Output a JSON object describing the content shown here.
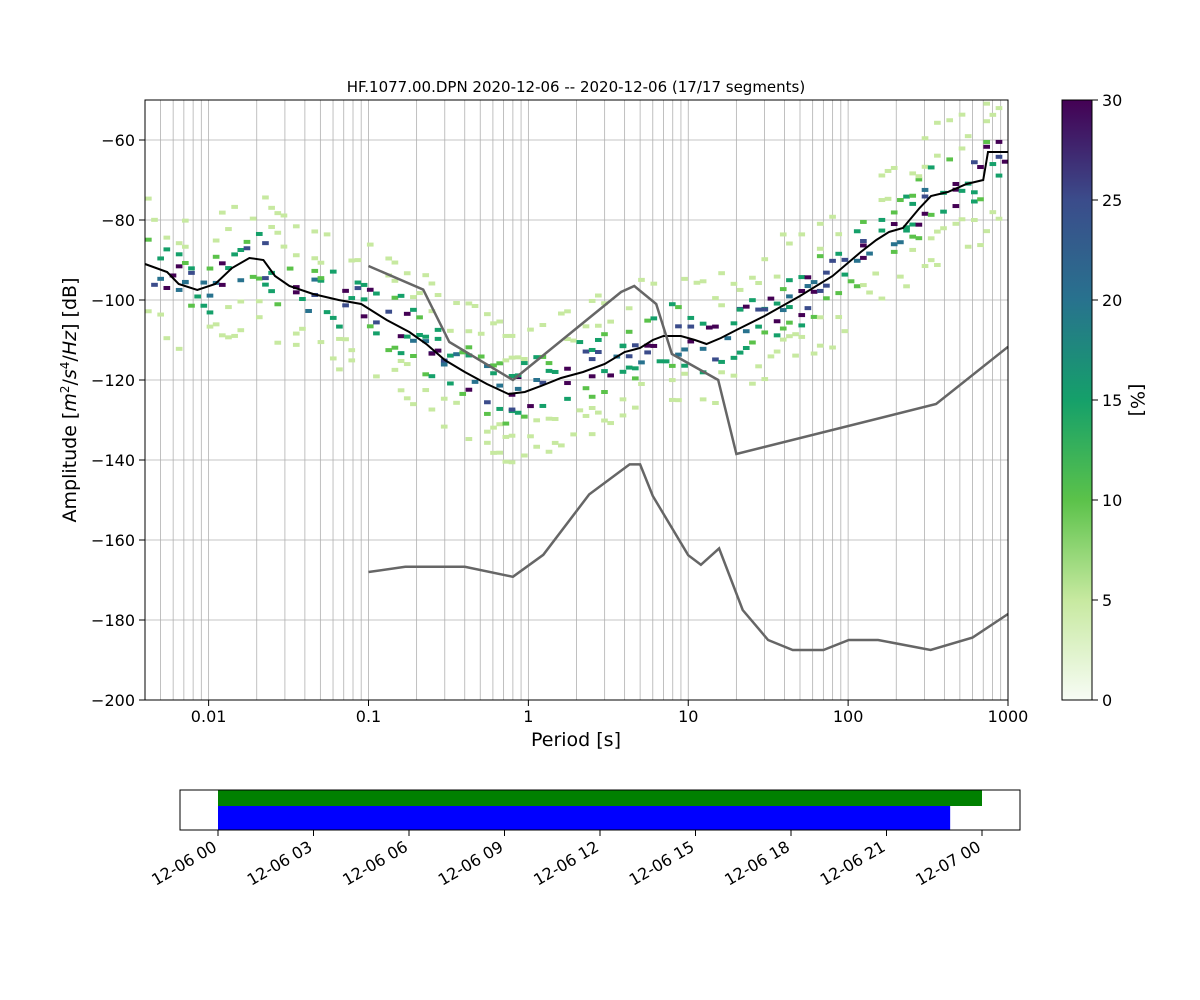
{
  "chart_data": [
    {
      "type": "heatmap",
      "title": "HF.1077.00.DPN   2020-12-06 -- 2020-12-06  (17/17 segments)",
      "xlabel": "Period [s]",
      "ylabel": "Amplitude [m²/s⁴/Hz] [dB]",
      "xscale": "log",
      "xlim": [
        0.004,
        1000
      ],
      "ylim": [
        -200,
        -50
      ],
      "grid": true,
      "x_ticks": [
        0.01,
        0.1,
        1,
        10,
        100,
        1000
      ],
      "x_tick_labels": [
        "0.01",
        "0.1",
        "1",
        "10",
        "100",
        "1000"
      ],
      "y_ticks": [
        -200,
        -180,
        -160,
        -140,
        -120,
        -100,
        -80,
        -60
      ],
      "y_tick_labels": [
        "−200",
        "−180",
        "−160",
        "−140",
        "−120",
        "−100",
        "−80",
        "−60"
      ],
      "colorbar": {
        "label": "[%]",
        "range": [
          0,
          30
        ],
        "ticks": [
          0,
          5,
          10,
          15,
          20,
          25,
          30
        ],
        "tick_labels": [
          "0",
          "5",
          "10",
          "15",
          "20",
          "25",
          "30"
        ],
        "colormap": [
          "#f7fcf5",
          "#c7e9a0",
          "#5bc24a",
          "#15a06a",
          "#28728e",
          "#3b4c8b",
          "#440154"
        ]
      },
      "series": [
        {
          "kind": "mean",
          "color": "#000000",
          "x": [
            0.004,
            0.0055,
            0.0065,
            0.0085,
            0.011,
            0.014,
            0.018,
            0.022,
            0.026,
            0.032,
            0.045,
            0.065,
            0.09,
            0.13,
            0.18,
            0.23,
            0.3,
            0.4,
            0.55,
            0.75,
            0.95,
            1.2,
            1.6,
            2.2,
            3.0,
            4.0,
            5.0,
            6.0,
            7.0,
            9.0,
            11,
            13,
            16,
            20,
            30,
            50,
            80,
            120,
            150,
            180,
            220,
            280,
            330,
            420,
            550,
            700,
            750,
            1000
          ],
          "y": [
            -91,
            -93,
            -96,
            -97.5,
            -96,
            -92,
            -89.5,
            -90,
            -94,
            -96.5,
            -98.5,
            -100,
            -101,
            -105,
            -108,
            -111,
            -115,
            -118,
            -121,
            -123.5,
            -123,
            -121.5,
            -119.5,
            -118,
            -116,
            -113,
            -112,
            -110,
            -109,
            -109,
            -110,
            -111,
            -109.5,
            -107.5,
            -104,
            -99,
            -94,
            -88,
            -85,
            -83,
            -82,
            -77,
            -74,
            -73,
            -71,
            -70,
            -63,
            -63
          ]
        },
        {
          "kind": "nlnm",
          "color": "#666666",
          "x": [
            0.1,
            0.17,
            0.4,
            0.8,
            1.24,
            2.4,
            4.3,
            5.0,
            6.0,
            10,
            12,
            15.6,
            21.9,
            31.6,
            45,
            70,
            101,
            154,
            328,
            600,
            1000
          ],
          "y": [
            -168,
            -166.7,
            -166.7,
            -169.2,
            -163.7,
            -148.6,
            -141.1,
            -141.1,
            -149,
            -163.8,
            -166.2,
            -162.1,
            -177.5,
            -185,
            -187.5,
            -187.5,
            -185,
            -185,
            -187.5,
            -184.4,
            -178.5
          ]
        },
        {
          "kind": "nhnm",
          "color": "#666666",
          "x": [
            0.1,
            0.22,
            0.32,
            0.8,
            3.8,
            4.6,
            6.3,
            7.9,
            15.4,
            20,
            354.8,
            1000
          ],
          "y": [
            -91.5,
            -97.4,
            -110.5,
            -120,
            -98,
            -96.5,
            -101,
            -113.5,
            -120,
            -138.5,
            -126,
            -111.7
          ]
        }
      ]
    },
    {
      "type": "timeline",
      "x_tick_labels": [
        "12-06 00",
        "12-06 03",
        "12-06 06",
        "12-06 09",
        "12-06 12",
        "12-06 15",
        "12-06 18",
        "12-06 21",
        "12-07 00"
      ],
      "bars": [
        {
          "color": "#008000",
          "start_hour": 0,
          "end_hour": 24
        },
        {
          "color": "#0000ff",
          "start_hour": 0,
          "end_hour": 23
        }
      ]
    }
  ]
}
